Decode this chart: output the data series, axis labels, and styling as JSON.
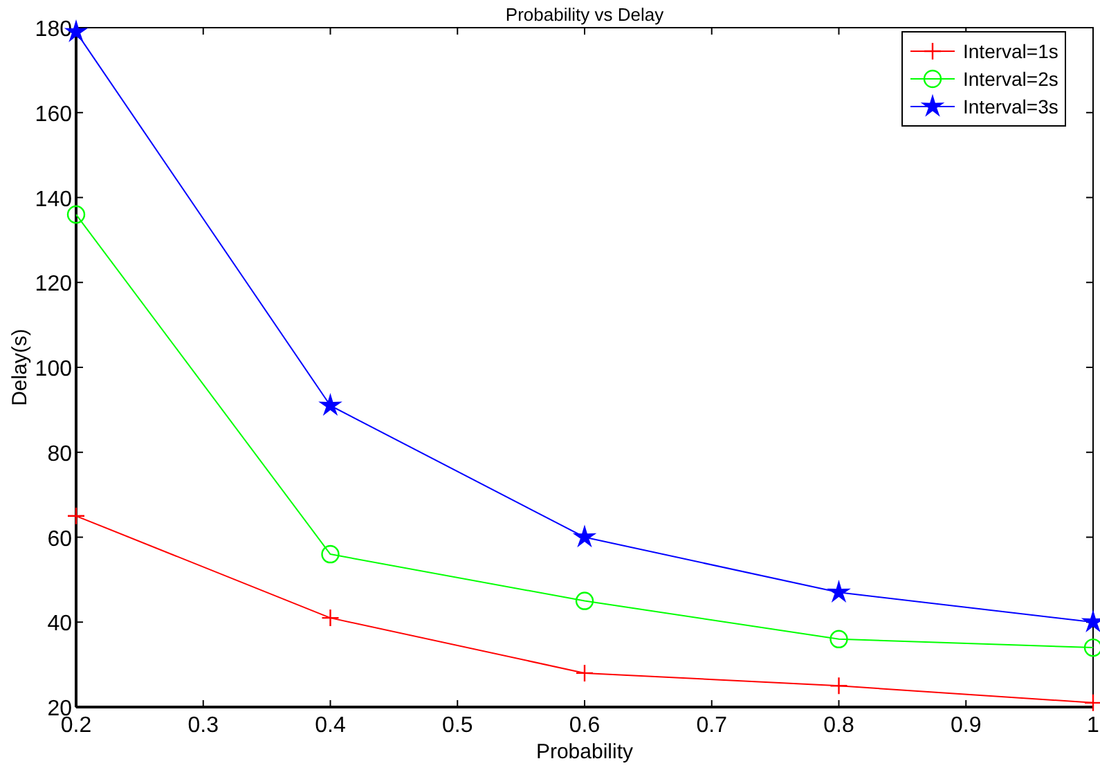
{
  "chart_data": {
    "type": "line",
    "title": "Probability vs Delay",
    "xlabel": "Probability",
    "ylabel": "Delay(s)",
    "x": [
      0.2,
      0.4,
      0.6,
      0.8,
      1
    ],
    "series": [
      {
        "name": "Interval=1s",
        "color": "#ff0000",
        "marker": "cross",
        "values": [
          65,
          41,
          28,
          25,
          21
        ]
      },
      {
        "name": "Interval=2s",
        "color": "#00ff00",
        "marker": "circle",
        "values": [
          136,
          56,
          45,
          36,
          34
        ]
      },
      {
        "name": "Interval=3s",
        "color": "#0000ff",
        "marker": "star",
        "values": [
          179,
          91,
          60,
          47,
          40
        ]
      }
    ],
    "xlim": [
      0.2,
      1
    ],
    "xticks": [
      0.2,
      0.3,
      0.4,
      0.5,
      0.6,
      0.7,
      0.8,
      0.9,
      1
    ],
    "ylim": [
      20,
      180
    ],
    "yticks": [
      20,
      40,
      60,
      80,
      100,
      120,
      140,
      160,
      180
    ],
    "legend": "top right",
    "line_style": "solid"
  }
}
